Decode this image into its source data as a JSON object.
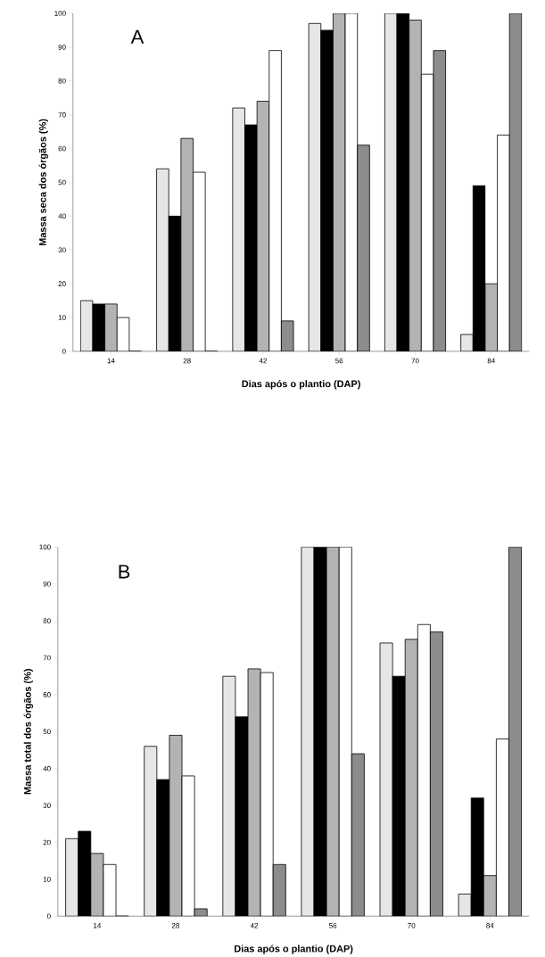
{
  "chart_data": [
    {
      "type": "bar",
      "xlabel": "Dias após o plantio (DAP)",
      "ylabel": "Massa seca dos órgãos (%)",
      "annotations": [
        "A"
      ],
      "categories": [
        "14",
        "28",
        "42",
        "56",
        "70",
        "84"
      ],
      "series": [
        {
          "color": "#e6e6e6",
          "values": [
            15,
            54,
            72,
            97,
            100,
            5
          ]
        },
        {
          "color": "#000000",
          "values": [
            14,
            40,
            67,
            95,
            100,
            49
          ]
        },
        {
          "color": "#b3b3b3",
          "values": [
            14,
            63,
            74,
            100,
            98,
            20
          ]
        },
        {
          "color": "#ffffff",
          "values": [
            10,
            53,
            89,
            100,
            82,
            64
          ]
        },
        {
          "color": "#8c8c8c",
          "values": [
            0,
            0,
            9,
            61,
            89,
            100
          ]
        }
      ],
      "ylim": [
        0,
        100
      ],
      "yticks": [
        0,
        10,
        20,
        30,
        40,
        50,
        60,
        70,
        80,
        90,
        100
      ]
    },
    {
      "type": "bar",
      "xlabel": "Dias após o plantio (DAP)",
      "ylabel": "Massa total dos órgãos (%)",
      "annotations": [
        "B"
      ],
      "categories": [
        "14",
        "28",
        "42",
        "56",
        "70",
        "84"
      ],
      "series": [
        {
          "color": "#e6e6e6",
          "values": [
            21,
            46,
            65,
            100,
            74,
            6
          ]
        },
        {
          "color": "#000000",
          "values": [
            23,
            37,
            54,
            100,
            65,
            32
          ]
        },
        {
          "color": "#b3b3b3",
          "values": [
            17,
            49,
            67,
            100,
            75,
            11
          ]
        },
        {
          "color": "#ffffff",
          "values": [
            14,
            38,
            66,
            100,
            79,
            48
          ]
        },
        {
          "color": "#8c8c8c",
          "values": [
            0,
            2,
            14,
            44,
            77,
            100
          ]
        }
      ],
      "ylim": [
        0,
        100
      ],
      "yticks": [
        0,
        10,
        20,
        30,
        40,
        50,
        60,
        70,
        80,
        90,
        100
      ]
    }
  ]
}
